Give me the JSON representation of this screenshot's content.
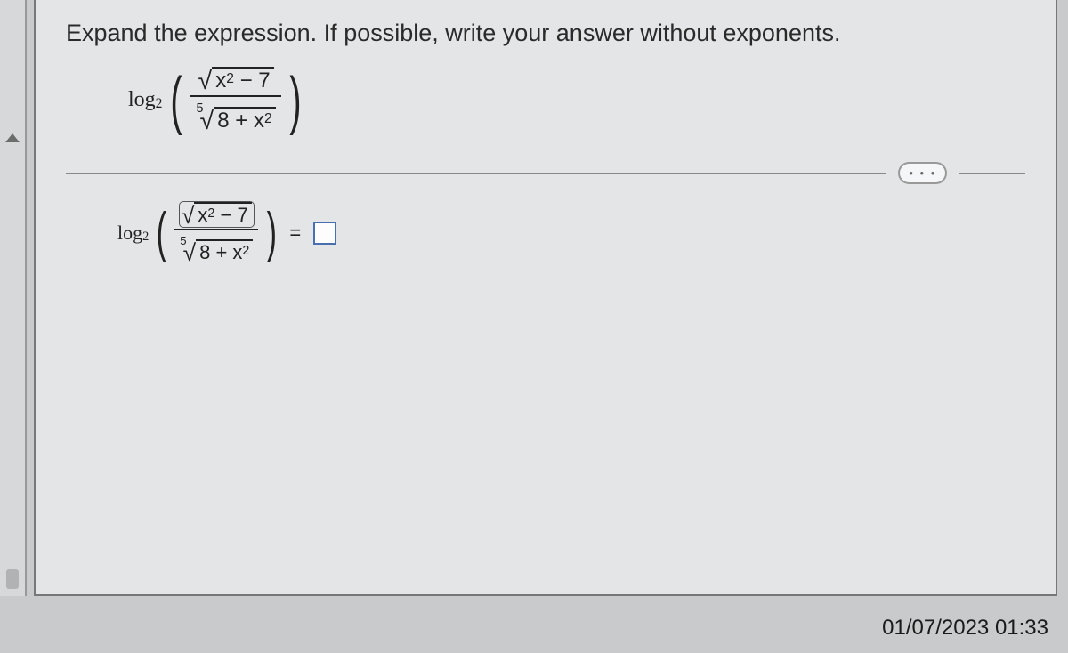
{
  "prompt": "Expand the expression.  If possible, write your answer without exponents.",
  "log_label": "log",
  "log_base": "2",
  "expr": {
    "num_inside": "x",
    "num_exp": "2",
    "num_tail": "− 7",
    "den_index": "5",
    "den_inside": "8 + x",
    "den_exp": "2"
  },
  "answer_eq": "=",
  "ellipsis": "• • •",
  "timestamp": "01/07/2023  01:33"
}
